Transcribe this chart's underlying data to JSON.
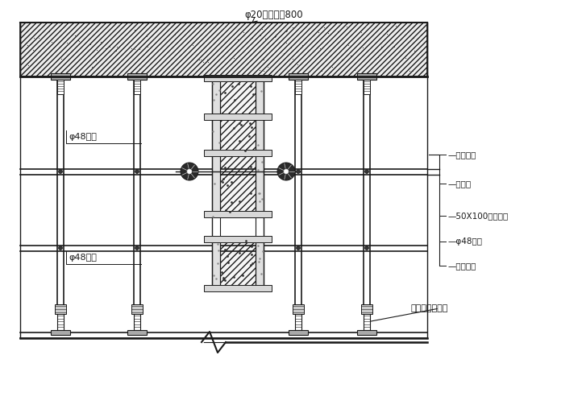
{
  "background_color": "#ffffff",
  "line_color": "#1a1a1a",
  "annotation_top": "φ20閒筋间距800",
  "label_1": "硌结构架",
  "label_2": "九夹板",
  "label_3": "50X100木方横挡",
  "label_4": "φ48鈢管",
  "label_5": "对控螺栓",
  "label_6": "可调节鈢支顶架",
  "label_pipe_upper": "φ48鈢管",
  "label_pipe_lower": "φ48鈢管",
  "fig_w": 7.22,
  "fig_h": 5.13,
  "dpi": 100
}
